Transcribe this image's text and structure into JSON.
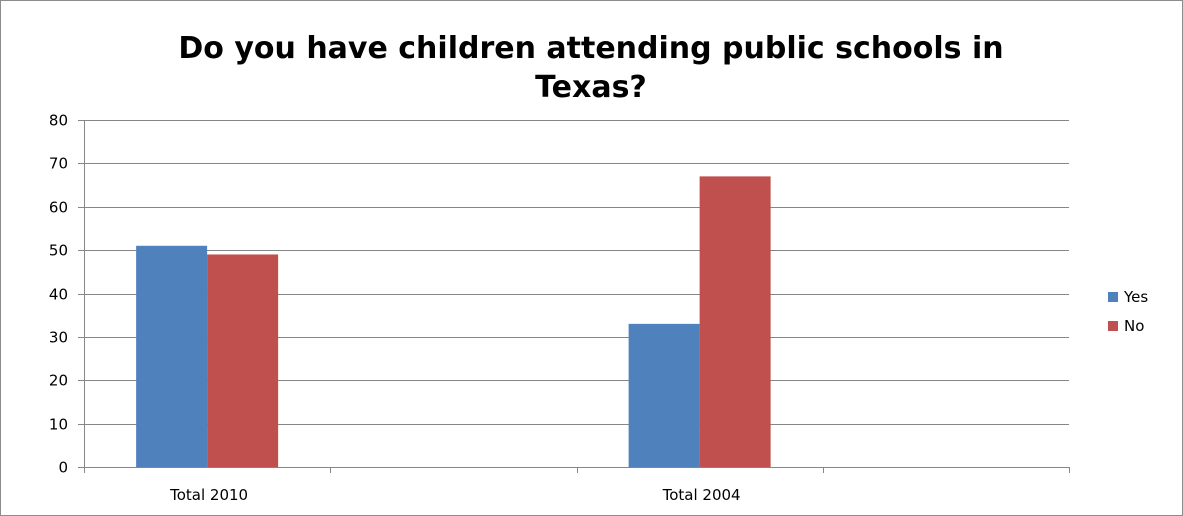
{
  "chart_data": {
    "type": "bar",
    "title_lines": [
      "Do you have children attending public schools in",
      "Texas?"
    ],
    "categories": [
      "Total 2010",
      "Total 2004"
    ],
    "series": [
      {
        "name": "Yes",
        "color": "#4f81bd",
        "values": [
          51,
          33
        ]
      },
      {
        "name": "No",
        "color": "#c0504d",
        "values": [
          49,
          67
        ]
      }
    ],
    "ylim": [
      0,
      80
    ],
    "yticks": [
      0,
      10,
      20,
      30,
      40,
      50,
      60,
      70,
      80
    ],
    "grid": true,
    "legend_position": "right",
    "gridline_color": "#868686",
    "axis_color": "#868686"
  }
}
